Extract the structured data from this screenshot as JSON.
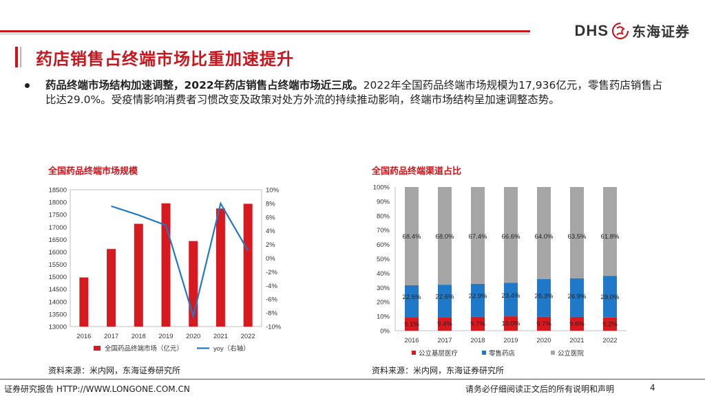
{
  "header": {
    "logo_text": "DHS",
    "logo_cn": "东海证券"
  },
  "page": {
    "title": "药店销售占终端市场比重加速提升",
    "bullet_bold": "药品终端市场结构加速调整，2022年药店销售占终端市场近三成。",
    "bullet_text": "2022年全国药品终端市场规模为17,936亿元，零售药店销售占比达29.0%。受疫情影响消费者习惯改变及政策对处方外流的持续推动影响，终端市场结构呈加速调整态势。"
  },
  "colors": {
    "accent": "#c8161d",
    "red_bar": "#d71920",
    "blue": "#1f78c8",
    "gray": "#a6a6a6"
  },
  "chart_data": [
    {
      "type": "bar",
      "title": "全国药品终端市场规模",
      "categories": [
        "2016",
        "2017",
        "2018",
        "2019",
        "2020",
        "2021",
        "2022"
      ],
      "series": [
        {
          "name": "全国药品终端市场（亿元）",
          "type": "bar",
          "axis": "left",
          "values": [
            14975,
            16118,
            17131,
            17955,
            16437,
            17747,
            17936
          ]
        },
        {
          "name": "yoy（右轴）",
          "type": "line",
          "axis": "right",
          "values": [
            null,
            7.6,
            6.3,
            4.8,
            -8.5,
            8.0,
            1.1
          ]
        }
      ],
      "ylim": [
        13000,
        18500
      ],
      "yticks": [
        "13000",
        "13500",
        "14000",
        "14500",
        "15000",
        "15500",
        "16000",
        "16500",
        "17000",
        "17500",
        "18000",
        "18500"
      ],
      "y2lim": [
        -10,
        10
      ],
      "y2ticks": [
        "-10%",
        "-8%",
        "-6%",
        "-4%",
        "-2%",
        "0%",
        "2%",
        "4%",
        "6%",
        "8%",
        "10%"
      ],
      "legend": [
        "全国药品终端市场（亿元）",
        "yoy（右轴）"
      ],
      "source": "资料来源：米内网，东海证券研究所"
    },
    {
      "type": "bar",
      "stacked": true,
      "title": "全国药品终端渠道占比",
      "categories": [
        "2016",
        "2017",
        "2018",
        "2019",
        "2020",
        "2021",
        "2022"
      ],
      "series": [
        {
          "name": "公立基层医疗",
          "values": [
            9.1,
            9.4,
            9.7,
            10.0,
            9.7,
            9.6,
            9.2
          ],
          "labels": [
            "9.1%",
            "9.4%",
            "9.7%",
            "10.0%",
            "9.7%",
            "9.6%",
            "9.2%"
          ]
        },
        {
          "name": "零售药店",
          "values": [
            22.5,
            22.6,
            22.9,
            23.4,
            26.3,
            26.9,
            29.0
          ],
          "labels": [
            "22.5%",
            "22.6%",
            "22.9%",
            "23.4%",
            "26.3%",
            "26.9%",
            "29.0%"
          ]
        },
        {
          "name": "公立医院",
          "values": [
            68.4,
            68.0,
            67.4,
            66.6,
            64.0,
            63.5,
            61.8
          ],
          "labels": [
            "68.4%",
            "68.0%",
            "67.4%",
            "66.6%",
            "64.0%",
            "63.5%",
            "61.8%"
          ]
        }
      ],
      "ylim": [
        0,
        100
      ],
      "yticks": [
        "0%",
        "10%",
        "20%",
        "30%",
        "40%",
        "50%",
        "60%",
        "70%",
        "80%",
        "90%",
        "100%"
      ],
      "legend": [
        "公立基层医疗",
        "零售药店",
        "公立医院"
      ],
      "source": "资料来源：米内网，东海证券研究所"
    }
  ],
  "footer": {
    "left": "证券研究报告 HTTP://WWW.LONGONE.COM.CN",
    "right": "请务必仔细阅读正文后的所有说明和声明",
    "page_number": "4"
  }
}
